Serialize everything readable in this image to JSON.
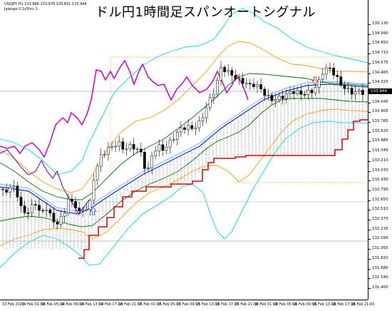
{
  "title": "ドル円1時間足スパンオートシグナル",
  "info_line1": "USDJPY,H1  133.866 133.976 133.831 133.944",
  "info_line2": "Jalango 0 1x5hrs 1",
  "price_tag": "133.944",
  "y_axis_labels": [
    "135.130",
    "134.990",
    "134.850",
    "134.710",
    "134.575",
    "134.465",
    "134.325",
    "134.185",
    "134.045",
    "133.905",
    "133.765",
    "133.625",
    "133.485",
    "133.345",
    "133.210",
    "133.070",
    "132.930",
    "132.790",
    "132.650",
    "132.510",
    "132.375",
    "132.235",
    "132.095",
    "131.955",
    "131.820",
    "131.680",
    "131.540",
    "131.400"
  ],
  "x_axis_labels": [
    "13 Feb 2023",
    "14 Feb 01:00",
    "14 Feb 05:00",
    "14 Feb 09:00",
    "14 Feb 13:00",
    "14 Feb 17:00",
    "14 Feb 21:00",
    "15 Feb 01:00",
    "15 Feb 05:00",
    "15 Feb 09:00",
    "15 Feb 13:00",
    "15 Feb 17:00",
    "15 Feb 21:00",
    "16 Feb 01:00",
    "16 Feb 05:00",
    "16 Feb 09:00",
    "16 Feb 13:00",
    "16 Feb 17:00",
    "16 Feb 21:00"
  ],
  "colors": {
    "candle_up": "#000000",
    "candle_down": "#000000",
    "bollinger_outer": "#00d8f0",
    "bollinger_mid": "#ff9900",
    "bollinger_inner": "#007a00",
    "ma_blue": "#0033cc",
    "span_red": "#dd0000",
    "chikou_magenta": "#cc00cc",
    "purple_line": "#8a2bbf",
    "hline_gray": "#7a8a9a",
    "dotted_orange": "#ff9900"
  },
  "signals": [
    {
      "type": "buy-arrow",
      "color": "#3366ff"
    },
    {
      "type": "sell-arrow",
      "color": "#ff3300"
    }
  ]
}
